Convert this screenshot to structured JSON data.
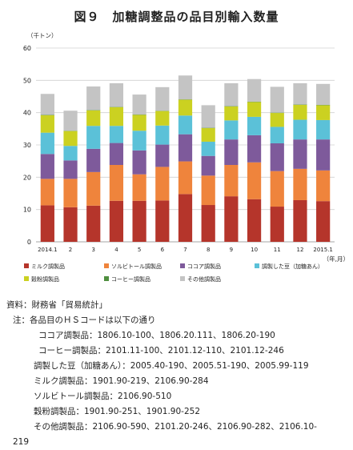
{
  "title": "図９　加糖調整品の品目別輸入数量",
  "chart_data": {
    "type": "stacked-bar",
    "y_unit_label": "（千トン）",
    "x_unit_label": "（年,月）",
    "ylim": [
      0,
      60
    ],
    "y_ticks": [
      0,
      10,
      20,
      30,
      40,
      50,
      60
    ],
    "grid": true,
    "legend_position": "bottom",
    "categories": [
      "2014.1",
      "2",
      "3",
      "4",
      "5",
      "6",
      "7",
      "8",
      "9",
      "10",
      "11",
      "12",
      "2015.1"
    ],
    "series": [
      {
        "name": "ミルク調製品",
        "color": "#b5352b",
        "values": [
          11.3,
          10.7,
          11.2,
          12.7,
          12.7,
          12.8,
          14.8,
          11.4,
          14.1,
          13.2,
          10.9,
          12.9,
          12.6
        ]
      },
      {
        "name": "ソルビトール調製品",
        "color": "#ef843c",
        "values": [
          8.2,
          8.8,
          10.4,
          11.1,
          8.2,
          10.4,
          10.1,
          9.1,
          9.7,
          11.4,
          11.0,
          9.7,
          9.5
        ]
      },
      {
        "name": "ココア調製品",
        "color": "#7e5a9b",
        "values": [
          7.7,
          5.7,
          7.2,
          6.8,
          7.4,
          6.9,
          8.4,
          6.1,
          7.9,
          8.4,
          8.6,
          9.1,
          9.6
        ]
      },
      {
        "name": "調製した豆（加糖あん）",
        "color": "#5bc1d8",
        "values": [
          6.6,
          4.5,
          7.1,
          5.3,
          6.1,
          5.9,
          5.8,
          4.4,
          5.9,
          5.7,
          5.1,
          6.1,
          6.0
        ]
      },
      {
        "name": "穀粉調製品",
        "color": "#cbd121",
        "values": [
          5.4,
          4.6,
          4.8,
          5.8,
          4.9,
          4.5,
          4.9,
          4.2,
          4.3,
          4.6,
          4.3,
          4.6,
          4.6
        ]
      },
      {
        "name": "コーヒー調製品",
        "color": "#4f8f3f",
        "values": [
          0.1,
          0.1,
          0.1,
          0.1,
          0.1,
          0.1,
          0.1,
          0.1,
          0.1,
          0.1,
          0.1,
          0.1,
          0.1
        ]
      },
      {
        "name": "その他調製品",
        "color": "#c4c4c4",
        "values": [
          6.5,
          6.2,
          7.3,
          7.3,
          6.2,
          7.3,
          7.4,
          7.0,
          7.1,
          7.0,
          8.0,
          6.6,
          6.5
        ]
      }
    ]
  },
  "notes": {
    "source_label": "資料：財務省「貿易統計」",
    "note_label": "注：各品目のＨＳコードは以下の通り",
    "lines": [
      "ココア調製品：1806.10-100、1806.20.111、1806.20-190",
      "コーヒー調製品：2101.11-100、2101.12-110、2101.12-246",
      "調製した豆（加糖あん）：2005.40-190、2005.51-190、2005.99-119",
      "ミルク調製品：1901.90-219、2106.90-284",
      "ソルビトール調製品：2106.90-510",
      "穀粉調製品：1901.90-251、1901.90-252",
      "その他調製品：2106.90-590、2101.20-246、2106.90-282、2106.10-",
      "219"
    ]
  }
}
